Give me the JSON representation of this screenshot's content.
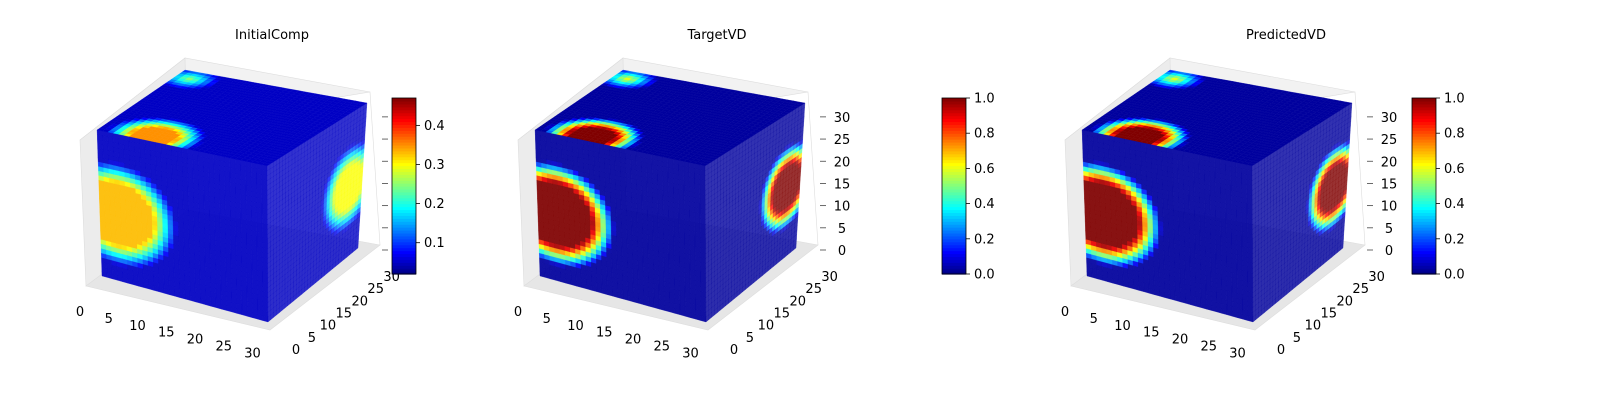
{
  "figure": {
    "background": "#ffffff",
    "colormap": "jet"
  },
  "chart_data": [
    {
      "type": "heatmap",
      "subtype": "3d-voxel-cube",
      "title": "InitialComp",
      "x_ticks": [
        "0",
        "5",
        "10",
        "15",
        "20",
        "25",
        "30"
      ],
      "y_ticks": [
        "0",
        "5",
        "10",
        "15",
        "20",
        "25",
        "30"
      ],
      "z_ticks": [],
      "xlim": [
        0,
        32
      ],
      "ylim": [
        0,
        32
      ],
      "zlim": [
        0,
        32
      ],
      "grid": true,
      "colorbar": {
        "range": [
          0.02,
          0.47
        ],
        "ticks": [
          0.1,
          0.2,
          0.3,
          0.4
        ],
        "tick_labels": [
          "0.1",
          "0.2",
          "0.3",
          "0.4"
        ],
        "placement": "right"
      },
      "background_value": 0.05,
      "inclusions": [
        {
          "face": "front",
          "u": 3,
          "v": 14,
          "radius": 9,
          "value": 0.33
        },
        {
          "face": "right",
          "u": 27,
          "v": 15,
          "radius": 7,
          "value": 0.3
        },
        {
          "face": "top",
          "u": 9,
          "v": 29,
          "radius": 6,
          "value": 0.35
        },
        {
          "face": "top",
          "u": 2,
          "v": 3,
          "radius": 2.5,
          "value": 0.25
        }
      ]
    },
    {
      "type": "heatmap",
      "subtype": "3d-voxel-cube",
      "title": "TargetVD",
      "x_ticks": [
        "0",
        "5",
        "10",
        "15",
        "20",
        "25",
        "30"
      ],
      "y_ticks": [
        "0",
        "5",
        "10",
        "15",
        "20",
        "25",
        "30"
      ],
      "z_ticks": [
        "0",
        "5",
        "10",
        "15",
        "20",
        "25",
        "30"
      ],
      "xlim": [
        0,
        32
      ],
      "ylim": [
        0,
        32
      ],
      "zlim": [
        0,
        32
      ],
      "grid": true,
      "colorbar": {
        "range": [
          0.0,
          1.0
        ],
        "ticks": [
          0.0,
          0.2,
          0.4,
          0.6,
          0.8,
          1.0
        ],
        "tick_labels": [
          "0.0",
          "0.2",
          "0.4",
          "0.6",
          "0.8",
          "1.0"
        ],
        "placement": "right-detached"
      },
      "background_value": 0.03,
      "inclusions": [
        {
          "face": "front",
          "u": 3,
          "v": 14,
          "radius": 9,
          "value": 1.0
        },
        {
          "face": "right",
          "u": 27,
          "v": 15,
          "radius": 7,
          "value": 1.0
        },
        {
          "face": "top",
          "u": 9,
          "v": 29,
          "radius": 6,
          "value": 1.0
        },
        {
          "face": "top",
          "u": 2,
          "v": 3,
          "radius": 2.5,
          "value": 0.6
        }
      ]
    },
    {
      "type": "heatmap",
      "subtype": "3d-voxel-cube",
      "title": "PredictedVD",
      "x_ticks": [
        "0",
        "5",
        "10",
        "15",
        "20",
        "25",
        "30"
      ],
      "y_ticks": [
        "0",
        "5",
        "10",
        "15",
        "20",
        "25",
        "30"
      ],
      "z_ticks": [
        "0",
        "5",
        "10",
        "15",
        "20",
        "25",
        "30"
      ],
      "xlim": [
        0,
        32
      ],
      "ylim": [
        0,
        32
      ],
      "zlim": [
        0,
        32
      ],
      "grid": true,
      "colorbar": {
        "range": [
          0.0,
          1.0
        ],
        "ticks": [
          0.0,
          0.2,
          0.4,
          0.6,
          0.8,
          1.0
        ],
        "tick_labels": [
          "0.0",
          "0.2",
          "0.4",
          "0.6",
          "0.8",
          "1.0"
        ],
        "placement": "right"
      },
      "background_value": 0.03,
      "inclusions": [
        {
          "face": "front",
          "u": 3,
          "v": 14,
          "radius": 9,
          "value": 1.0
        },
        {
          "face": "right",
          "u": 27,
          "v": 15,
          "radius": 7,
          "value": 1.0
        },
        {
          "face": "top",
          "u": 9,
          "v": 29,
          "radius": 6,
          "value": 1.0
        },
        {
          "face": "top",
          "u": 2,
          "v": 3,
          "radius": 2.5,
          "value": 0.6
        }
      ]
    }
  ]
}
